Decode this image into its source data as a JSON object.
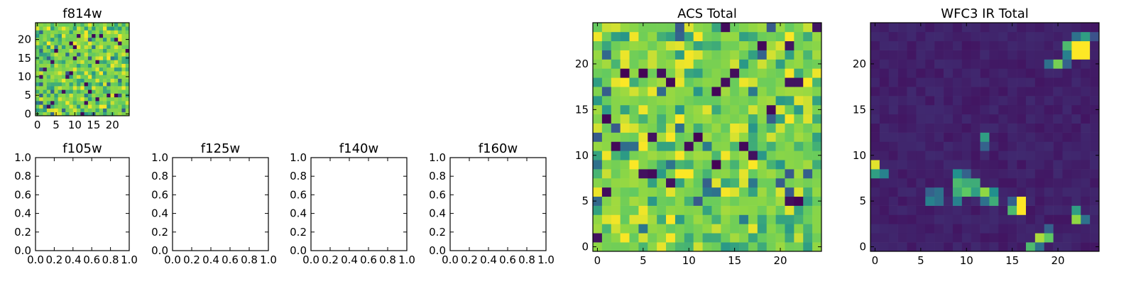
{
  "palette": [
    "#440154",
    "#3b528b",
    "#21908d",
    "#5dc863",
    "#8fd744",
    "#fde725"
  ],
  "chart_data": [
    {
      "type": "heatmap",
      "title": "f814w",
      "shape": [
        25,
        25
      ],
      "xticks": [
        "0",
        "5",
        "10",
        "15",
        "20"
      ],
      "yticks": [
        "0",
        "5",
        "10",
        "15",
        "20"
      ],
      "xlim": [
        -0.5,
        24.5
      ],
      "ylim": [
        -0.5,
        24.5
      ],
      "pattern": "noisy",
      "colormap": "viridis",
      "grid": false
    },
    {
      "type": "empty",
      "title": "f105w",
      "xticks": [
        "0.0",
        "0.2",
        "0.4",
        "0.6",
        "0.8",
        "1.0"
      ],
      "yticks": [
        "0.0",
        "0.2",
        "0.4",
        "0.6",
        "0.8",
        "1.0"
      ],
      "xlim": [
        0,
        1
      ],
      "ylim": [
        0,
        1
      ]
    },
    {
      "type": "empty",
      "title": "f125w",
      "xticks": [
        "0.0",
        "0.2",
        "0.4",
        "0.6",
        "0.8",
        "1.0"
      ],
      "yticks": [
        "0.0",
        "0.2",
        "0.4",
        "0.6",
        "0.8",
        "1.0"
      ],
      "xlim": [
        0,
        1
      ],
      "ylim": [
        0,
        1
      ]
    },
    {
      "type": "empty",
      "title": "f140w",
      "xticks": [
        "0.0",
        "0.2",
        "0.4",
        "0.6",
        "0.8",
        "1.0"
      ],
      "yticks": [
        "0.0",
        "0.2",
        "0.4",
        "0.6",
        "0.8",
        "1.0"
      ],
      "xlim": [
        0,
        1
      ],
      "ylim": [
        0,
        1
      ]
    },
    {
      "type": "empty",
      "title": "f160w",
      "xticks": [
        "0.0",
        "0.2",
        "0.4",
        "0.6",
        "0.8",
        "1.0"
      ],
      "yticks": [
        "0.0",
        "0.2",
        "0.4",
        "0.6",
        "0.8",
        "1.0"
      ],
      "xlim": [
        0,
        1
      ],
      "ylim": [
        0,
        1
      ]
    },
    {
      "type": "heatmap",
      "title": "ACS Total",
      "shape": [
        25,
        25
      ],
      "xticks": [
        "0",
        "5",
        "10",
        "15",
        "20"
      ],
      "yticks": [
        "0",
        "5",
        "10",
        "15",
        "20"
      ],
      "xlim": [
        -0.5,
        24.5
      ],
      "ylim": [
        -0.5,
        24.5
      ],
      "pattern": "noisy",
      "colormap": "viridis",
      "grid": false
    },
    {
      "type": "heatmap",
      "title": "WFC3 IR Total",
      "shape": [
        25,
        25
      ],
      "xticks": [
        "0",
        "5",
        "10",
        "15",
        "20"
      ],
      "yticks": [
        "0",
        "5",
        "10",
        "15",
        "20"
      ],
      "xlim": [
        -0.5,
        24.5
      ],
      "ylim": [
        -0.5,
        24.5
      ],
      "pattern": "sources",
      "colormap": "viridis",
      "grid": false,
      "bright_cells": [
        {
          "x": 22,
          "y": 22,
          "v": 1.0
        },
        {
          "x": 23,
          "y": 22,
          "v": 1.0
        },
        {
          "x": 22,
          "y": 21,
          "v": 1.0
        },
        {
          "x": 23,
          "y": 21,
          "v": 1.0
        },
        {
          "x": 21,
          "y": 22,
          "v": 0.55
        },
        {
          "x": 21,
          "y": 21,
          "v": 0.35
        },
        {
          "x": 22,
          "y": 23,
          "v": 0.3
        },
        {
          "x": 23,
          "y": 23,
          "v": 0.45
        },
        {
          "x": 24,
          "y": 23,
          "v": 0.2
        },
        {
          "x": 20,
          "y": 20,
          "v": 0.7
        },
        {
          "x": 19,
          "y": 20,
          "v": 0.3
        },
        {
          "x": 21,
          "y": 20,
          "v": 0.25
        },
        {
          "x": 0,
          "y": 9,
          "v": 0.95
        },
        {
          "x": 0,
          "y": 8,
          "v": 0.45
        },
        {
          "x": 1,
          "y": 8,
          "v": 0.35
        },
        {
          "x": 12,
          "y": 12,
          "v": 0.45
        },
        {
          "x": 12,
          "y": 11,
          "v": 0.25
        },
        {
          "x": 9,
          "y": 8,
          "v": 0.4
        },
        {
          "x": 10,
          "y": 8,
          "v": 0.25
        },
        {
          "x": 9,
          "y": 7,
          "v": 0.55
        },
        {
          "x": 10,
          "y": 7,
          "v": 0.5
        },
        {
          "x": 11,
          "y": 7,
          "v": 0.5
        },
        {
          "x": 9,
          "y": 6,
          "v": 0.5
        },
        {
          "x": 10,
          "y": 6,
          "v": 0.6
        },
        {
          "x": 11,
          "y": 6,
          "v": 0.45
        },
        {
          "x": 12,
          "y": 6,
          "v": 0.8
        },
        {
          "x": 13,
          "y": 6,
          "v": 0.4
        },
        {
          "x": 6,
          "y": 6,
          "v": 0.25
        },
        {
          "x": 7,
          "y": 6,
          "v": 0.3
        },
        {
          "x": 6,
          "y": 5,
          "v": 0.35
        },
        {
          "x": 7,
          "y": 5,
          "v": 0.3
        },
        {
          "x": 9,
          "y": 5,
          "v": 0.35
        },
        {
          "x": 12,
          "y": 5,
          "v": 0.3
        },
        {
          "x": 13,
          "y": 5,
          "v": 0.5
        },
        {
          "x": 16,
          "y": 5,
          "v": 1.0
        },
        {
          "x": 16,
          "y": 4,
          "v": 1.0
        },
        {
          "x": 15,
          "y": 4,
          "v": 0.55
        },
        {
          "x": 15,
          "y": 5,
          "v": 0.25
        },
        {
          "x": 22,
          "y": 4,
          "v": 0.45
        },
        {
          "x": 22,
          "y": 3,
          "v": 0.8
        },
        {
          "x": 23,
          "y": 3,
          "v": 0.3
        },
        {
          "x": 18,
          "y": 1,
          "v": 0.85
        },
        {
          "x": 19,
          "y": 1,
          "v": 0.6
        },
        {
          "x": 17,
          "y": 0,
          "v": 0.55
        },
        {
          "x": 18,
          "y": 0,
          "v": 0.3
        },
        {
          "x": 19,
          "y": 2,
          "v": 0.25
        }
      ]
    }
  ]
}
